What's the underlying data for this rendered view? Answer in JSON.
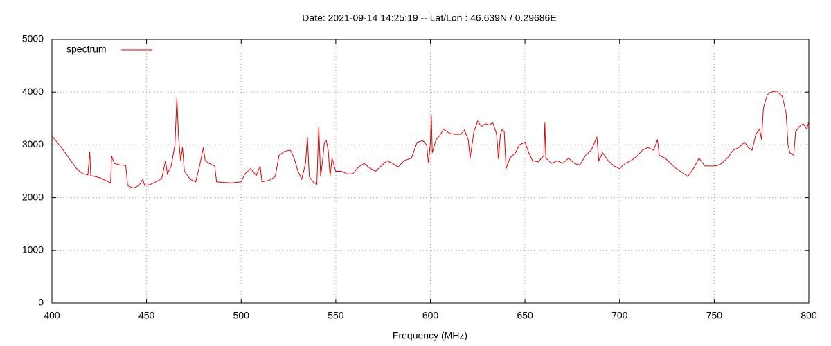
{
  "chart_data": {
    "type": "line",
    "title": "Date: 2021-09-14 14:25:19  --  Lat/Lon : 46.639N / 0.29686E",
    "x_label": "Frequency (MHz)",
    "x": [
      400,
      405,
      410,
      413,
      416,
      419,
      420,
      420.5,
      425,
      428,
      431,
      431.5,
      433,
      436,
      439,
      440,
      443,
      446,
      448,
      449,
      452,
      455,
      458,
      460,
      461,
      463,
      465,
      466,
      467,
      468,
      469,
      470,
      473,
      476,
      478,
      480,
      481,
      483,
      486,
      487,
      490,
      495,
      500,
      502,
      505,
      508,
      510,
      511,
      515,
      518,
      520,
      523,
      526,
      528,
      530,
      532,
      534,
      535,
      536,
      538,
      540,
      541,
      542,
      543,
      544,
      545,
      546,
      547,
      548,
      550,
      553,
      556,
      559,
      562,
      565,
      568,
      571,
      574,
      577,
      580,
      583,
      586,
      590,
      593,
      596,
      598,
      599,
      600,
      600.5,
      601,
      603,
      605,
      607,
      610,
      613,
      616,
      618,
      620,
      621,
      623,
      625,
      627,
      629,
      631,
      633,
      635,
      636,
      637,
      638,
      639,
      640,
      642,
      645,
      647,
      650,
      652,
      654,
      657,
      660,
      660.5,
      661,
      664,
      667,
      670,
      673,
      676,
      679,
      682,
      685,
      688,
      689,
      691,
      694,
      697,
      700,
      703,
      706,
      709,
      712,
      715,
      718,
      720,
      721,
      724,
      727,
      730,
      733,
      736,
      739,
      742,
      745,
      748,
      751,
      754,
      757,
      760,
      763,
      766,
      768,
      770,
      772,
      774,
      775,
      776,
      778,
      780,
      783,
      786,
      788,
      789,
      790,
      792,
      793,
      795,
      797,
      799,
      800
    ],
    "series": [
      {
        "name": "spectrum",
        "color": "#e00000",
        "values": [
          3170,
          2950,
          2700,
          2550,
          2460,
          2430,
          2870,
          2420,
          2380,
          2330,
          2280,
          2790,
          2650,
          2620,
          2610,
          2230,
          2180,
          2230,
          2350,
          2230,
          2250,
          2300,
          2360,
          2700,
          2450,
          2600,
          3000,
          3900,
          3100,
          2700,
          2950,
          2500,
          2350,
          2300,
          2600,
          2950,
          2700,
          2650,
          2600,
          2300,
          2290,
          2280,
          2300,
          2450,
          2550,
          2420,
          2600,
          2300,
          2330,
          2400,
          2800,
          2880,
          2900,
          2750,
          2500,
          2350,
          2650,
          3150,
          2400,
          2300,
          2250,
          3350,
          2400,
          2700,
          3050,
          3080,
          2900,
          2400,
          2750,
          2500,
          2500,
          2450,
          2450,
          2580,
          2650,
          2560,
          2500,
          2600,
          2700,
          2650,
          2580,
          2700,
          2750,
          3050,
          3080,
          3000,
          2650,
          3050,
          3570,
          2850,
          3100,
          3180,
          3300,
          3220,
          3200,
          3200,
          3280,
          3100,
          2750,
          3250,
          3450,
          3350,
          3400,
          3380,
          3420,
          3200,
          2730,
          3200,
          3300,
          3250,
          2550,
          2750,
          2850,
          3000,
          3050,
          2850,
          2700,
          2680,
          2800,
          3420,
          2750,
          2650,
          2700,
          2650,
          2750,
          2650,
          2620,
          2800,
          2900,
          3150,
          2700,
          2850,
          2700,
          2600,
          2550,
          2650,
          2700,
          2780,
          2900,
          2950,
          2900,
          3100,
          2800,
          2750,
          2650,
          2550,
          2480,
          2400,
          2550,
          2750,
          2600,
          2600,
          2600,
          2650,
          2750,
          2900,
          2950,
          3050,
          2950,
          2900,
          3200,
          3300,
          3100,
          3700,
          3950,
          4000,
          4020,
          3920,
          3600,
          3000,
          2850,
          2800,
          3250,
          3350,
          3400,
          3300,
          3450
        ]
      }
    ],
    "xlim": [
      400,
      800
    ],
    "xticks": [
      400,
      450,
      500,
      550,
      600,
      650,
      700,
      750,
      800
    ],
    "ylim": [
      0,
      5000
    ],
    "yticks": [
      0,
      1000,
      2000,
      3000,
      4000,
      5000
    ],
    "grid": true,
    "legend": "top-left"
  }
}
